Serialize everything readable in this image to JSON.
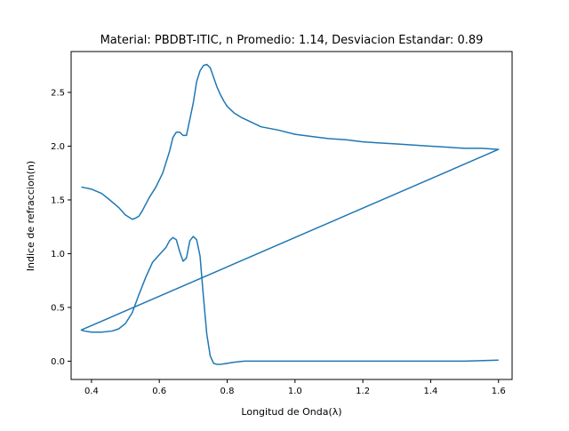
{
  "chart_data": {
    "type": "line",
    "title": "Material: PBDBT-ITIC, n Promedio: 1.14, Desviacion Estandar: 0.89",
    "xlabel": "Longitud de Onda(λ)",
    "ylabel": "Indice de refraccion(n)",
    "xlim": [
      0.34,
      1.64
    ],
    "ylim": [
      -0.17,
      2.88
    ],
    "xticks": [
      0.4,
      0.6,
      0.8,
      1.0,
      1.2,
      1.4,
      1.6
    ],
    "xtick_labels": [
      "0.4",
      "0.6",
      "0.8",
      "1.0",
      "1.2",
      "1.4",
      "1.6"
    ],
    "yticks": [
      0.0,
      0.5,
      1.0,
      1.5,
      2.0,
      2.5
    ],
    "ytick_labels": [
      "0.0",
      "0.5",
      "1.0",
      "1.5",
      "2.0",
      "2.5"
    ],
    "grid": false,
    "line_color": "#1f77b4",
    "series": [
      {
        "x": [
          0.37,
          0.4,
          0.43,
          0.45,
          0.48,
          0.5,
          0.52,
          0.53,
          0.54,
          0.55,
          0.57,
          0.59,
          0.61,
          0.63,
          0.64,
          0.65,
          0.66,
          0.67,
          0.68,
          0.69,
          0.7,
          0.71,
          0.72,
          0.73,
          0.74,
          0.75,
          0.76,
          0.77,
          0.78,
          0.79,
          0.8,
          0.82,
          0.84,
          0.86,
          0.88,
          0.9,
          0.95,
          1.0,
          1.05,
          1.1,
          1.15,
          1.2,
          1.25,
          1.3,
          1.35,
          1.4,
          1.45,
          1.5,
          1.55,
          1.6,
          0.37,
          0.38,
          0.4,
          0.43,
          0.46,
          0.48,
          0.5,
          0.52,
          0.54,
          0.56,
          0.58,
          0.6,
          0.62,
          0.63,
          0.64,
          0.65,
          0.66,
          0.67,
          0.68,
          0.69,
          0.7,
          0.71,
          0.72,
          0.73,
          0.74,
          0.75,
          0.76,
          0.77,
          0.78,
          0.8,
          0.82,
          0.85,
          0.9,
          1.0,
          1.1,
          1.2,
          1.3,
          1.4,
          1.5,
          1.6
        ],
        "y": [
          1.62,
          1.6,
          1.56,
          1.51,
          1.43,
          1.36,
          1.32,
          1.33,
          1.35,
          1.4,
          1.52,
          1.62,
          1.75,
          1.95,
          2.08,
          2.13,
          2.13,
          2.1,
          2.1,
          2.25,
          2.4,
          2.6,
          2.7,
          2.75,
          2.76,
          2.73,
          2.64,
          2.55,
          2.48,
          2.42,
          2.37,
          2.31,
          2.27,
          2.24,
          2.21,
          2.18,
          2.15,
          2.11,
          2.09,
          2.07,
          2.06,
          2.04,
          2.03,
          2.02,
          2.01,
          2.0,
          1.99,
          1.98,
          1.98,
          1.97,
          0.29,
          0.28,
          0.27,
          0.27,
          0.28,
          0.3,
          0.35,
          0.45,
          0.62,
          0.78,
          0.92,
          0.99,
          1.06,
          1.12,
          1.15,
          1.13,
          1.02,
          0.93,
          0.96,
          1.12,
          1.16,
          1.13,
          0.98,
          0.6,
          0.25,
          0.05,
          -0.02,
          -0.03,
          -0.03,
          -0.02,
          -0.01,
          0.0,
          0.0,
          0.0,
          0.0,
          0.0,
          0.0,
          0.0,
          0.0,
          0.01
        ]
      }
    ]
  }
}
